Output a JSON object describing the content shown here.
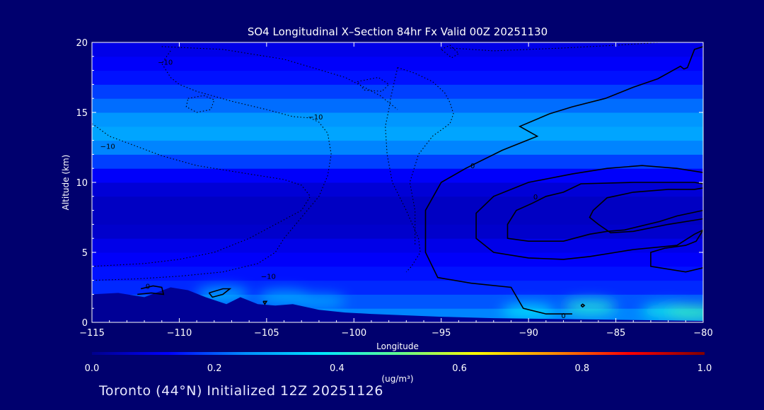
{
  "colors": {
    "background": "#00006e",
    "axis": "#ffffff",
    "contour": "#000000",
    "colormap": [
      "#00008c",
      "#0000ff",
      "#0090ff",
      "#00e8ff",
      "#60ff90",
      "#ffff00",
      "#ff9000",
      "#ff0000",
      "#800000"
    ]
  },
  "chart_data": {
    "type": "heatmap",
    "title": "SO4 Longitudinal X–Section 84hr  Fx Valid 00Z 20251130",
    "xlabel": "Longitude",
    "ylabel": "Altitude (km)",
    "xlim": [
      -115,
      -80
    ],
    "ylim": [
      0,
      20
    ],
    "x_ticks": [
      -115,
      -110,
      -105,
      -100,
      -95,
      -90,
      -85,
      -80
    ],
    "x_tick_labels": [
      "−115",
      "−110",
      "−105",
      "−100",
      "−95",
      "−90",
      "−85",
      "−80"
    ],
    "y_ticks": [
      0,
      5,
      10,
      15,
      20
    ],
    "y_tick_labels": [
      "0",
      "5",
      "10",
      "15",
      "20"
    ],
    "colorbar": {
      "min": 0.0,
      "max": 1.0,
      "ticks": [
        "0.0",
        "0.2",
        "0.4",
        "0.6",
        "0.8",
        "1.0"
      ],
      "units": "(ug/m³)"
    },
    "altitude_profile": [
      {
        "alt": 0.5,
        "value": 0.24
      },
      {
        "alt": 1.5,
        "value": 0.2
      },
      {
        "alt": 2.5,
        "value": 0.16
      },
      {
        "alt": 3.5,
        "value": 0.14
      },
      {
        "alt": 4.5,
        "value": 0.12
      },
      {
        "alt": 5.5,
        "value": 0.1
      },
      {
        "alt": 6.5,
        "value": 0.07
      },
      {
        "alt": 7.5,
        "value": 0.06
      },
      {
        "alt": 8.5,
        "value": 0.06
      },
      {
        "alt": 9.5,
        "value": 0.08
      },
      {
        "alt": 10.5,
        "value": 0.12
      },
      {
        "alt": 11.5,
        "value": 0.18
      },
      {
        "alt": 12.5,
        "value": 0.24
      },
      {
        "alt": 13.5,
        "value": 0.28
      },
      {
        "alt": 14.5,
        "value": 0.26
      },
      {
        "alt": 15.5,
        "value": 0.22
      },
      {
        "alt": 16.5,
        "value": 0.18
      },
      {
        "alt": 17.5,
        "value": 0.14
      },
      {
        "alt": 18.5,
        "value": 0.12
      },
      {
        "alt": 19.5,
        "value": 0.1
      }
    ],
    "surface_highlights": [
      {
        "lon": -107.5,
        "alt": 2.0,
        "value": 0.32
      },
      {
        "lon": -104.0,
        "alt": 1.8,
        "value": 0.3
      },
      {
        "lon": -102.0,
        "alt": 1.5,
        "value": 0.28
      },
      {
        "lon": -90.0,
        "alt": 0.8,
        "value": 0.38
      },
      {
        "lon": -86.5,
        "alt": 1.1,
        "value": 0.42
      },
      {
        "lon": -82.0,
        "alt": 0.8,
        "value": 0.4
      },
      {
        "lon": -80.5,
        "alt": 0.7,
        "value": 0.45
      }
    ],
    "terrain": [
      {
        "lon": -115.0,
        "alt": 2.0
      },
      {
        "lon": -113.5,
        "alt": 2.1
      },
      {
        "lon": -112.0,
        "alt": 1.8
      },
      {
        "lon": -110.5,
        "alt": 2.5
      },
      {
        "lon": -109.5,
        "alt": 2.3
      },
      {
        "lon": -108.5,
        "alt": 1.8
      },
      {
        "lon": -107.3,
        "alt": 1.3
      },
      {
        "lon": -106.5,
        "alt": 1.8
      },
      {
        "lon": -105.5,
        "alt": 1.3
      },
      {
        "lon": -104.5,
        "alt": 1.2
      },
      {
        "lon": -103.5,
        "alt": 1.3
      },
      {
        "lon": -102.0,
        "alt": 0.9
      },
      {
        "lon": -100.5,
        "alt": 0.7
      },
      {
        "lon": -99.0,
        "alt": 0.6
      },
      {
        "lon": -97.0,
        "alt": 0.5
      },
      {
        "lon": -95.0,
        "alt": 0.4
      },
      {
        "lon": -92.0,
        "alt": 0.3
      },
      {
        "lon": -89.0,
        "alt": 0.25
      },
      {
        "lon": -86.0,
        "alt": 0.2
      },
      {
        "lon": -83.0,
        "alt": 0.15
      },
      {
        "lon": -80.0,
        "alt": 0.1
      }
    ],
    "contours": [
      {
        "level": "0",
        "style": "solid",
        "points": [
          [
            -80,
            19.7
          ],
          [
            -80.5,
            19.5
          ],
          [
            -80.9,
            18.2
          ],
          [
            -81.1,
            18.1
          ],
          [
            -81.3,
            18.3
          ],
          [
            -82.6,
            17.4
          ],
          [
            -84.0,
            16.8
          ],
          [
            -85.6,
            16.0
          ],
          [
            -87.5,
            15.4
          ],
          [
            -88.8,
            14.9
          ],
          [
            -90.5,
            14.0
          ],
          [
            -89.5,
            13.3
          ],
          [
            -91.5,
            12.3
          ],
          [
            -93.6,
            11.0
          ],
          [
            -95.0,
            10.0
          ],
          [
            -95.9,
            8.0
          ],
          [
            -95.9,
            5.0
          ],
          [
            -95.2,
            3.2
          ],
          [
            -93.3,
            2.8
          ],
          [
            -91.0,
            2.5
          ],
          [
            -90.3,
            1.0
          ],
          [
            -89.0,
            0.6
          ],
          [
            -87.5,
            0.6
          ]
        ],
        "labels": [
          {
            "text": "0",
            "lon": -93.2,
            "alt": 11.2
          },
          {
            "text": "0",
            "lon": -88.0,
            "alt": 0.5
          }
        ]
      },
      {
        "level": "0",
        "style": "solid",
        "points": [
          [
            -80,
            10.7
          ],
          [
            -81.5,
            11.0
          ],
          [
            -83.5,
            11.2
          ],
          [
            -85.5,
            11.0
          ],
          [
            -87.5,
            10.6
          ],
          [
            -90.0,
            10.0
          ],
          [
            -92.0,
            9.0
          ],
          [
            -93.0,
            7.8
          ],
          [
            -93.0,
            6.0
          ],
          [
            -92.0,
            5.0
          ],
          [
            -90.0,
            4.6
          ],
          [
            -88.0,
            4.5
          ],
          [
            -86.5,
            4.7
          ],
          [
            -85.0,
            5.0
          ],
          [
            -84.0,
            5.2
          ],
          [
            -81.5,
            5.5
          ],
          [
            -80.5,
            6.3
          ],
          [
            -80,
            6.6
          ]
        ],
        "labels": []
      },
      {
        "level": "0",
        "style": "solid",
        "points": [
          [
            -80,
            9.9
          ],
          [
            -80.5,
            10.0
          ],
          [
            -84.0,
            10.0
          ],
          [
            -87.0,
            9.9
          ],
          [
            -88.0,
            9.3
          ],
          [
            -89.0,
            9.0
          ],
          [
            -89.8,
            8.5
          ],
          [
            -90.7,
            8.0
          ],
          [
            -91.2,
            7.0
          ],
          [
            -91.2,
            6.0
          ],
          [
            -90.0,
            5.8
          ],
          [
            -88.0,
            5.8
          ],
          [
            -86.5,
            6.3
          ],
          [
            -85.5,
            6.5
          ],
          [
            -84.5,
            6.6
          ],
          [
            -82.5,
            7.2
          ],
          [
            -81.5,
            7.6
          ],
          [
            -80,
            8.0
          ]
        ],
        "labels": [
          {
            "text": "0",
            "lon": -89.6,
            "alt": 9.0
          }
        ]
      },
      {
        "level": "0",
        "style": "solid",
        "points": [
          [
            -80,
            9.6
          ],
          [
            -80.5,
            9.5
          ],
          [
            -82.0,
            9.5
          ],
          [
            -84.0,
            9.3
          ],
          [
            -85.5,
            8.9
          ],
          [
            -86.3,
            8.0
          ],
          [
            -86.5,
            7.5
          ],
          [
            -86.0,
            7.0
          ],
          [
            -85.3,
            6.4
          ],
          [
            -84.0,
            6.5
          ],
          [
            -82.0,
            7.0
          ],
          [
            -80.5,
            7.3
          ],
          [
            -80,
            7.4
          ]
        ],
        "labels": []
      },
      {
        "level": "0",
        "style": "solid",
        "points": [
          [
            -80,
            6.6
          ],
          [
            -80.4,
            5.8
          ],
          [
            -81.0,
            5.5
          ],
          [
            -82.2,
            5.3
          ],
          [
            -83.0,
            5.0
          ],
          [
            -83.0,
            4.0
          ],
          [
            -81.0,
            3.6
          ],
          [
            -80,
            3.9
          ]
        ],
        "labels": []
      },
      {
        "level": "-10",
        "style": "dotted",
        "points": [
          [
            -110.5,
            19.4
          ],
          [
            -111.0,
            18.5
          ],
          [
            -110.5,
            17.5
          ],
          [
            -110.0,
            17.0
          ],
          [
            -109.0,
            16.5
          ],
          [
            -107.0,
            15.8
          ],
          [
            -105.0,
            15.2
          ],
          [
            -103.5,
            14.7
          ],
          [
            -102.5,
            14.6
          ],
          [
            -102.0,
            14.3
          ],
          [
            -101.5,
            13.5
          ],
          [
            -101.3,
            12.0
          ],
          [
            -101.5,
            10.5
          ],
          [
            -102.0,
            9.0
          ],
          [
            -103.0,
            7.5
          ],
          [
            -104.0,
            6.0
          ],
          [
            -104.5,
            5.0
          ],
          [
            -105.5,
            4.2
          ],
          [
            -107.5,
            3.6
          ],
          [
            -110.0,
            3.3
          ],
          [
            -112.5,
            3.1
          ],
          [
            -115.0,
            3.0
          ]
        ],
        "labels": [
          {
            "text": "−10",
            "lon": -110.8,
            "alt": 18.6
          },
          {
            "text": "−10",
            "lon": -102.2,
            "alt": 14.7
          },
          {
            "text": "−10",
            "lon": -104.9,
            "alt": 3.3
          }
        ]
      },
      {
        "level": "-10",
        "style": "dotted",
        "points": [
          [
            -115,
            14.2
          ],
          [
            -114.0,
            13.3
          ],
          [
            -112.5,
            12.6
          ],
          [
            -111.0,
            11.9
          ],
          [
            -109.0,
            11.2
          ],
          [
            -107.0,
            10.8
          ],
          [
            -105.5,
            10.5
          ],
          [
            -104.0,
            10.2
          ],
          [
            -103.0,
            9.8
          ],
          [
            -102.5,
            9.0
          ],
          [
            -103.0,
            8.0
          ],
          [
            -104.5,
            7.0
          ],
          [
            -106.0,
            6.0
          ],
          [
            -108.0,
            5.0
          ],
          [
            -110.0,
            4.5
          ],
          [
            -112.0,
            4.2
          ],
          [
            -115.0,
            4.0
          ]
        ],
        "labels": [
          {
            "text": "−10",
            "lon": -114.1,
            "alt": 12.6
          }
        ]
      },
      {
        "level": "-10",
        "style": "dotted",
        "points": [
          [
            -97.5,
            18.2
          ],
          [
            -97.9,
            16.0
          ],
          [
            -98.0,
            15.2
          ],
          [
            -98.2,
            14.0
          ],
          [
            -98.1,
            12.0
          ],
          [
            -97.8,
            10.0
          ],
          [
            -97.0,
            8.0
          ],
          [
            -96.3,
            6.0
          ],
          [
            -96.2,
            5.0
          ],
          [
            -96.7,
            4.0
          ],
          [
            -97.0,
            3.6
          ]
        ],
        "labels": []
      },
      {
        "level": "-10",
        "style": "dotted",
        "points": [
          [
            -97.5,
            18.2
          ],
          [
            -96.5,
            17.8
          ],
          [
            -95.5,
            17.2
          ],
          [
            -94.8,
            16.4
          ],
          [
            -94.5,
            15.7
          ],
          [
            -94.3,
            14.9
          ],
          [
            -94.5,
            14.2
          ],
          [
            -95.5,
            13.3
          ],
          [
            -96.3,
            12.0
          ],
          [
            -96.8,
            10.0
          ],
          [
            -96.5,
            8.0
          ],
          [
            -96.5,
            5.5
          ]
        ],
        "labels": []
      },
      {
        "level": "-10",
        "style": "dotted",
        "points": [
          [
            -94.5,
            19.6
          ],
          [
            -92.0,
            19.4
          ],
          [
            -88.0,
            19.6
          ],
          [
            -85.0,
            19.8
          ],
          [
            -82.5,
            20.0
          ]
        ],
        "labels": []
      },
      {
        "level": "-10",
        "style": "dotted",
        "points": [
          [
            -111.0,
            19.7
          ],
          [
            -107.5,
            19.5
          ],
          [
            -104.0,
            18.8
          ],
          [
            -100.5,
            17.5
          ],
          [
            -98.5,
            16.2
          ],
          [
            -97.5,
            15.2
          ]
        ],
        "labels": []
      },
      {
        "level": "-10",
        "style": "dotted",
        "points": [
          [
            -109.5,
            16.0
          ],
          [
            -108.6,
            16.2
          ],
          [
            -108.0,
            15.9
          ],
          [
            -108.2,
            15.2
          ],
          [
            -109.0,
            15.0
          ],
          [
            -109.6,
            15.4
          ],
          [
            -109.5,
            16.0
          ]
        ],
        "labels": []
      },
      {
        "level": "-10",
        "style": "dotted",
        "points": [
          [
            -99.8,
            17.2
          ],
          [
            -98.6,
            17.5
          ],
          [
            -98.0,
            17.0
          ],
          [
            -98.4,
            16.5
          ],
          [
            -99.4,
            16.6
          ],
          [
            -99.8,
            17.2
          ]
        ],
        "labels": []
      },
      {
        "level": "-10",
        "style": "dotted",
        "points": [
          [
            -95.0,
            19.5
          ],
          [
            -94.5,
            19.8
          ],
          [
            -94.0,
            19.2
          ],
          [
            -94.4,
            18.9
          ],
          [
            -95.0,
            19.5
          ]
        ],
        "labels": []
      },
      {
        "level": "0",
        "style": "solid",
        "points": [
          [
            -108.3,
            2.1
          ],
          [
            -107.5,
            2.4
          ],
          [
            -107.1,
            2.4
          ],
          [
            -107.5,
            2.0
          ],
          [
            -108.1,
            1.8
          ],
          [
            -108.3,
            2.1
          ]
        ],
        "labels": []
      },
      {
        "level": "0",
        "style": "solid",
        "points": [
          [
            -112.4,
            2.0
          ],
          [
            -111.6,
            2.1
          ],
          [
            -110.9,
            2.0
          ],
          [
            -111.0,
            2.5
          ],
          [
            -111.5,
            2.6
          ],
          [
            -112.2,
            2.4
          ]
        ],
        "labels": [
          {
            "text": "0",
            "lon": -111.8,
            "alt": 2.6
          }
        ]
      },
      {
        "level": "0",
        "style": "solid",
        "points": [
          [
            -105.2,
            1.5
          ],
          [
            -105.0,
            1.5
          ],
          [
            -105.1,
            1.3
          ],
          [
            -105.2,
            1.5
          ]
        ],
        "labels": []
      },
      {
        "level": "0",
        "style": "solid",
        "points": [
          [
            -87.0,
            1.2
          ],
          [
            -86.9,
            1.1
          ],
          [
            -86.8,
            1.2
          ],
          [
            -86.9,
            1.3
          ],
          [
            -87.0,
            1.2
          ]
        ],
        "labels": []
      }
    ]
  },
  "footer": {
    "text": "Toronto (44°N) Initialized 12Z 20251126"
  }
}
